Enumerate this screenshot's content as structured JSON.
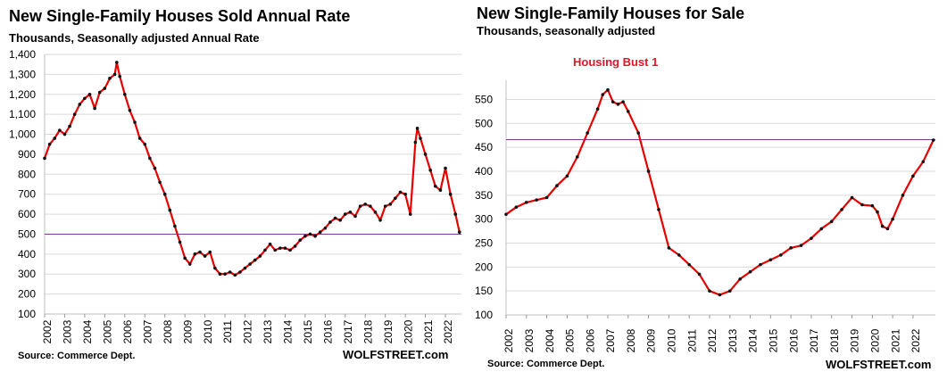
{
  "left": {
    "title": "New Single-Family Houses Sold Annual Rate",
    "subtitle": "Thousands, Seasonally adjusted Annual Rate",
    "source": "Source: Commerce Dept.",
    "brand": "WOLFSTREET.com"
  },
  "right": {
    "title": "New Single-Family Houses for Sale",
    "subtitle": "Thousands, seasonally adjusted",
    "source": "Source: Commerce Dept.",
    "brand": "WOLFSTREET.com"
  },
  "colors": {
    "line": "#e60000",
    "marker": "#111111",
    "reference": "#7b3f91",
    "grid": "#d9d9d9",
    "annotation": "#e8132b"
  },
  "chart_data": [
    {
      "type": "line",
      "title": "New Single-Family Houses Sold Annual Rate",
      "subtitle": "Thousands, Seasonally adjusted Annual Rate",
      "ylim": [
        100,
        1400
      ],
      "yticks": [
        "100",
        "200",
        "300",
        "400",
        "500",
        "600",
        "700",
        "800",
        "900",
        "1,000",
        "1,100",
        "1,200",
        "1,300",
        "1,400"
      ],
      "xlim": [
        2002,
        2022.8
      ],
      "xticks": [
        "2002",
        "2003",
        "2004",
        "2005",
        "2006",
        "2007",
        "2008",
        "2009",
        "2010",
        "2011",
        "2012",
        "2013",
        "2014",
        "2015",
        "2016",
        "2017",
        "2018",
        "2019",
        "2020",
        "2021",
        "2022"
      ],
      "reference_line": 500,
      "grid": true,
      "series": [
        {
          "points": [
            [
              2002.0,
              880
            ],
            [
              2002.25,
              950
            ],
            [
              2002.5,
              980
            ],
            [
              2002.75,
              1020
            ],
            [
              2003.0,
              1000
            ],
            [
              2003.25,
              1040
            ],
            [
              2003.5,
              1100
            ],
            [
              2003.75,
              1150
            ],
            [
              2004.0,
              1180
            ],
            [
              2004.25,
              1200
            ],
            [
              2004.5,
              1130
            ],
            [
              2004.75,
              1210
            ],
            [
              2005.0,
              1230
            ],
            [
              2005.25,
              1280
            ],
            [
              2005.5,
              1300
            ],
            [
              2005.6,
              1360
            ],
            [
              2005.75,
              1290
            ],
            [
              2006.0,
              1200
            ],
            [
              2006.25,
              1120
            ],
            [
              2006.5,
              1060
            ],
            [
              2006.75,
              980
            ],
            [
              2007.0,
              950
            ],
            [
              2007.25,
              880
            ],
            [
              2007.5,
              830
            ],
            [
              2007.75,
              760
            ],
            [
              2008.0,
              700
            ],
            [
              2008.25,
              620
            ],
            [
              2008.5,
              540
            ],
            [
              2008.75,
              460
            ],
            [
              2009.0,
              380
            ],
            [
              2009.25,
              350
            ],
            [
              2009.5,
              400
            ],
            [
              2009.75,
              410
            ],
            [
              2010.0,
              390
            ],
            [
              2010.25,
              410
            ],
            [
              2010.5,
              330
            ],
            [
              2010.75,
              300
            ],
            [
              2011.0,
              300
            ],
            [
              2011.25,
              310
            ],
            [
              2011.5,
              295
            ],
            [
              2011.75,
              310
            ],
            [
              2012.0,
              330
            ],
            [
              2012.25,
              350
            ],
            [
              2012.5,
              370
            ],
            [
              2012.75,
              390
            ],
            [
              2013.0,
              420
            ],
            [
              2013.25,
              450
            ],
            [
              2013.5,
              420
            ],
            [
              2013.75,
              430
            ],
            [
              2014.0,
              430
            ],
            [
              2014.25,
              420
            ],
            [
              2014.5,
              440
            ],
            [
              2014.75,
              470
            ],
            [
              2015.0,
              490
            ],
            [
              2015.25,
              500
            ],
            [
              2015.5,
              490
            ],
            [
              2015.75,
              510
            ],
            [
              2016.0,
              530
            ],
            [
              2016.25,
              560
            ],
            [
              2016.5,
              580
            ],
            [
              2016.75,
              570
            ],
            [
              2017.0,
              600
            ],
            [
              2017.25,
              610
            ],
            [
              2017.5,
              590
            ],
            [
              2017.75,
              640
            ],
            [
              2018.0,
              650
            ],
            [
              2018.25,
              640
            ],
            [
              2018.5,
              610
            ],
            [
              2018.75,
              570
            ],
            [
              2019.0,
              640
            ],
            [
              2019.25,
              650
            ],
            [
              2019.5,
              680
            ],
            [
              2019.75,
              710
            ],
            [
              2020.0,
              700
            ],
            [
              2020.25,
              600
            ],
            [
              2020.5,
              960
            ],
            [
              2020.6,
              1030
            ],
            [
              2020.75,
              980
            ],
            [
              2021.0,
              900
            ],
            [
              2021.25,
              820
            ],
            [
              2021.5,
              740
            ],
            [
              2021.75,
              720
            ],
            [
              2022.0,
              830
            ],
            [
              2022.25,
              700
            ],
            [
              2022.5,
              600
            ],
            [
              2022.7,
              510
            ]
          ]
        }
      ]
    },
    {
      "type": "line",
      "title": "New Single-Family Houses for Sale",
      "subtitle": "Thousands, seasonally adjusted",
      "ylim": [
        100,
        590
      ],
      "yticks": [
        "100",
        "150",
        "200",
        "250",
        "300",
        "350",
        "400",
        "450",
        "500",
        "550"
      ],
      "xlim": [
        2002,
        2023.1
      ],
      "xticks": [
        "2002",
        "2003",
        "2004",
        "2005",
        "2006",
        "2007",
        "2008",
        "2009",
        "2010",
        "2011",
        "2012",
        "2013",
        "2014",
        "2015",
        "2016",
        "2017",
        "2018",
        "2019",
        "2020",
        "2021",
        "2022"
      ],
      "reference_line": 466,
      "grid": true,
      "annotation": "Housing Bust 1",
      "series": [
        {
          "points": [
            [
              2002.0,
              310
            ],
            [
              2002.5,
              325
            ],
            [
              2003.0,
              335
            ],
            [
              2003.5,
              340
            ],
            [
              2004.0,
              345
            ],
            [
              2004.5,
              370
            ],
            [
              2005.0,
              390
            ],
            [
              2005.5,
              430
            ],
            [
              2006.0,
              480
            ],
            [
              2006.5,
              530
            ],
            [
              2006.75,
              560
            ],
            [
              2007.0,
              570
            ],
            [
              2007.25,
              545
            ],
            [
              2007.5,
              540
            ],
            [
              2007.75,
              545
            ],
            [
              2008.0,
              525
            ],
            [
              2008.5,
              480
            ],
            [
              2009.0,
              400
            ],
            [
              2009.5,
              320
            ],
            [
              2010.0,
              240
            ],
            [
              2010.5,
              225
            ],
            [
              2011.0,
              205
            ],
            [
              2011.5,
              185
            ],
            [
              2012.0,
              150
            ],
            [
              2012.5,
              142
            ],
            [
              2013.0,
              150
            ],
            [
              2013.5,
              175
            ],
            [
              2014.0,
              190
            ],
            [
              2014.5,
              205
            ],
            [
              2015.0,
              215
            ],
            [
              2015.5,
              225
            ],
            [
              2016.0,
              240
            ],
            [
              2016.5,
              245
            ],
            [
              2017.0,
              260
            ],
            [
              2017.5,
              280
            ],
            [
              2018.0,
              295
            ],
            [
              2018.5,
              320
            ],
            [
              2019.0,
              345
            ],
            [
              2019.5,
              330
            ],
            [
              2020.0,
              328
            ],
            [
              2020.25,
              315
            ],
            [
              2020.5,
              285
            ],
            [
              2020.75,
              280
            ],
            [
              2021.0,
              300
            ],
            [
              2021.5,
              350
            ],
            [
              2022.0,
              390
            ],
            [
              2022.5,
              420
            ],
            [
              2023.0,
              465
            ]
          ]
        }
      ]
    }
  ]
}
